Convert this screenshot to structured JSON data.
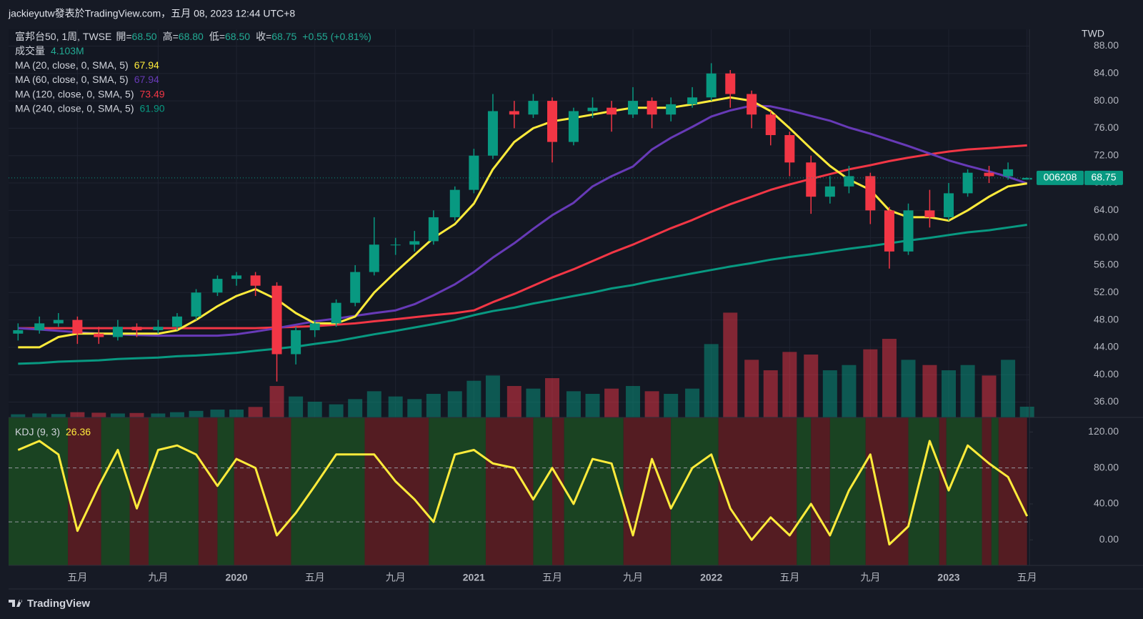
{
  "chart_data": {
    "type": "candlestick",
    "header": "jackieyutw發表於TradingView.com，五月 08, 2023 12:44 UTC+8",
    "symbol": "富邦台50, 1周, TWSE",
    "ohlc_legend": [
      {
        "label": "開=",
        "value": "68.50"
      },
      {
        "label": "高=",
        "value": "68.80"
      },
      {
        "label": "低=",
        "value": "68.50"
      },
      {
        "label": "收=",
        "value": "68.75"
      }
    ],
    "change": "+0.55 (+0.81%)",
    "currency": "TWD",
    "ticker": "006208",
    "footer": "TradingView",
    "x": [
      2019.08,
      2019.17,
      2019.25,
      2019.33,
      2019.42,
      2019.5,
      2019.58,
      2019.67,
      2019.75,
      2019.83,
      2019.92,
      2020,
      2020.08,
      2020.17,
      2020.25,
      2020.33,
      2020.42,
      2020.5,
      2020.58,
      2020.67,
      2020.75,
      2020.83,
      2020.92,
      2021,
      2021.08,
      2021.17,
      2021.25,
      2021.33,
      2021.42,
      2021.5,
      2021.58,
      2021.67,
      2021.75,
      2021.83,
      2021.92,
      2022,
      2022.08,
      2022.17,
      2022.25,
      2022.33,
      2022.42,
      2022.5,
      2022.58,
      2022.67,
      2022.75,
      2022.83,
      2022.92,
      2023,
      2023.08,
      2023.17,
      2023.25,
      2023.33
    ],
    "xlim": [
      2019.04,
      2023.34
    ],
    "xticks": [
      {
        "value": 2019.33,
        "label": "五月"
      },
      {
        "value": 2019.67,
        "label": "九月"
      },
      2020,
      {
        "value": 2020.33,
        "label": "五月"
      },
      {
        "value": 2020.67,
        "label": "九月"
      },
      2021,
      {
        "value": 2021.33,
        "label": "五月"
      },
      {
        "value": 2021.67,
        "label": "九月"
      },
      2022,
      {
        "value": 2022.33,
        "label": "五月"
      },
      {
        "value": 2022.67,
        "label": "九月"
      },
      2023,
      {
        "value": 2023.33,
        "label": "五月"
      }
    ],
    "ohlc": [
      [
        46,
        47.5,
        45,
        46.5
      ],
      [
        46.5,
        48.5,
        46,
        47.5
      ],
      [
        47.5,
        49,
        47,
        48
      ],
      [
        48,
        48.5,
        44.5,
        46
      ],
      [
        46,
        47,
        44.5,
        45.5
      ],
      [
        45.5,
        48,
        45,
        47
      ],
      [
        47,
        47.5,
        45.5,
        46.5
      ],
      [
        46.5,
        48,
        46,
        47
      ],
      [
        47,
        49,
        46.5,
        48.5
      ],
      [
        48.5,
        52.5,
        48,
        52
      ],
      [
        52,
        54.5,
        51.5,
        54
      ],
      [
        54,
        55,
        53,
        54.5
      ],
      [
        54.5,
        55,
        51.5,
        53
      ],
      [
        53,
        53.5,
        39,
        43
      ],
      [
        43,
        47,
        41.5,
        46.5
      ],
      [
        46.5,
        48,
        45.5,
        47.5
      ],
      [
        47.5,
        51,
        47,
        50.5
      ],
      [
        50.5,
        56,
        50,
        55
      ],
      [
        55,
        63,
        54.5,
        59
      ],
      [
        59,
        60,
        57.5,
        59
      ],
      [
        59,
        61,
        58,
        59.5
      ],
      [
        59.5,
        64,
        59,
        63
      ],
      [
        63,
        67.5,
        62.5,
        67
      ],
      [
        67,
        73,
        66.5,
        72
      ],
      [
        72,
        81,
        71.5,
        78.5
      ],
      [
        78.5,
        80,
        76,
        78
      ],
      [
        78,
        81,
        77.5,
        80
      ],
      [
        80,
        80.5,
        71,
        74
      ],
      [
        74,
        79,
        73.5,
        78.5
      ],
      [
        78.5,
        80.5,
        77.5,
        79
      ],
      [
        79,
        80,
        75.5,
        78
      ],
      [
        78,
        82,
        77.5,
        80
      ],
      [
        80,
        80.5,
        76,
        78
      ],
      [
        78,
        80.5,
        77,
        79.5
      ],
      [
        79.5,
        82,
        79,
        80.5
      ],
      [
        80.5,
        85.5,
        80,
        84
      ],
      [
        84,
        84.5,
        79,
        81
      ],
      [
        81,
        81.5,
        76,
        78
      ],
      [
        78,
        78.5,
        73.5,
        75
      ],
      [
        75,
        75.5,
        69,
        71
      ],
      [
        71,
        72,
        63.5,
        66
      ],
      [
        66,
        69,
        65,
        67.5
      ],
      [
        67.5,
        70.5,
        66.5,
        69
      ],
      [
        69,
        69.5,
        62,
        64
      ],
      [
        64,
        64.5,
        55.5,
        58
      ],
      [
        58,
        65,
        57.5,
        64
      ],
      [
        64,
        67,
        61.5,
        63
      ],
      [
        63,
        68,
        62.5,
        66.5
      ],
      [
        66.5,
        70,
        66,
        69.5
      ],
      [
        69.5,
        70.5,
        68,
        69
      ],
      [
        69,
        71,
        68.5,
        70
      ],
      [
        68.5,
        68.8,
        68.5,
        68.75
      ]
    ],
    "up_color": "#089981",
    "down_color": "#f23645",
    "ylim": [
      33.76,
      90.45
    ],
    "yticks": [
      {
        "value": 36,
        "label": "36.00"
      },
      {
        "value": 40,
        "label": "40.00"
      },
      {
        "value": 44,
        "label": "44.00"
      },
      {
        "value": 48,
        "label": "48.00"
      },
      {
        "value": 52,
        "label": "52.00"
      },
      {
        "value": 56,
        "label": "56.00"
      },
      {
        "value": 60,
        "label": "60.00"
      },
      {
        "value": 64,
        "label": "64.00"
      },
      {
        "value": 68,
        "label": "68.00"
      },
      {
        "value": 72,
        "label": "72.00"
      },
      {
        "value": 76,
        "label": "76.00"
      },
      {
        "value": 80,
        "label": "80.00"
      },
      {
        "value": 84,
        "label": "84.00"
      },
      {
        "value": 88,
        "label": "88.00"
      }
    ],
    "volume": {
      "name": "成交量",
      "last_label": "4.103M",
      "values": [
        1.2,
        1.5,
        1.3,
        2,
        1.8,
        1.5,
        1.7,
        1.5,
        2,
        2.5,
        3,
        3,
        4,
        12,
        8,
        6,
        5,
        7,
        10,
        8,
        7,
        9,
        10,
        14,
        16,
        12,
        11,
        15,
        10,
        9,
        11,
        12,
        10,
        9,
        11,
        28,
        40,
        22,
        18,
        25,
        24,
        18,
        20,
        26,
        30,
        22,
        20,
        18,
        20,
        16,
        22,
        4.103
      ]
    },
    "series": [
      {
        "name": "MA (20, close, 0, SMA, 5)",
        "color": "#ffeb3b",
        "last_label": "67.94",
        "values": [
          44,
          44,
          45.5,
          46,
          46,
          46,
          46,
          46,
          46.5,
          48,
          50,
          51.5,
          52.5,
          51,
          49,
          47.5,
          47.5,
          48.5,
          52,
          55,
          57.5,
          60,
          62,
          65,
          70,
          74,
          76,
          77,
          77.5,
          78,
          78.5,
          79,
          79,
          79,
          79.5,
          80,
          80.5,
          80,
          78.5,
          76,
          73,
          70.5,
          68.5,
          67,
          64,
          63,
          63,
          62.5,
          64,
          66,
          67.5,
          67.94
        ]
      },
      {
        "name": "MA (60, close, 0, SMA, 5)",
        "color": "#673ab7",
        "last_label": "67.94",
        "values": [
          46.8,
          46.6,
          46.4,
          46.2,
          46,
          45.9,
          45.8,
          45.7,
          45.7,
          45.7,
          45.7,
          45.9,
          46.3,
          46.8,
          47.3,
          47.8,
          48.2,
          48.6,
          49,
          49.4,
          50.3,
          51.6,
          53.2,
          55,
          57.1,
          59.2,
          61.3,
          63.3,
          65.1,
          67.5,
          69,
          70.4,
          72.9,
          74.6,
          76.2,
          77.7,
          78.6,
          79.3,
          79.2,
          78.6,
          77.8,
          77.1,
          76.1,
          75.2,
          74.3,
          73.4,
          72.3,
          71.3,
          70.5,
          69.7,
          68.9,
          67.94
        ]
      },
      {
        "name": "MA (120, close, 0, SMA, 5)",
        "color": "#f23645",
        "last_label": "73.49",
        "values": [
          46.8,
          46.8,
          46.8,
          46.8,
          46.8,
          46.8,
          46.8,
          46.8,
          46.8,
          46.8,
          46.8,
          46.8,
          46.8,
          46.9,
          47,
          47.1,
          47.3,
          47.5,
          47.8,
          48.1,
          48.4,
          48.7,
          49,
          49.4,
          50.6,
          51.8,
          53,
          54.2,
          55.4,
          56.6,
          57.8,
          59,
          60.2,
          61.4,
          62.6,
          63.8,
          64.9,
          66,
          67,
          67.8,
          68.6,
          69.3,
          70,
          70.6,
          71.2,
          71.7,
          72.2,
          72.6,
          72.9,
          73.1,
          73.3,
          73.49
        ]
      },
      {
        "name": "MA (240, close, 0, SMA, 5)",
        "color": "#089981",
        "last_label": "61.90",
        "values": [
          41.6,
          41.7,
          41.9,
          42,
          42.1,
          42.3,
          42.4,
          42.5,
          42.7,
          42.8,
          43,
          43.2,
          43.5,
          43.8,
          44.1,
          44.5,
          44.9,
          45.4,
          45.9,
          46.4,
          46.9,
          47.4,
          48,
          48.7,
          49.3,
          49.8,
          50.4,
          50.9,
          51.5,
          52,
          52.6,
          53.1,
          53.7,
          54.2,
          54.8,
          55.3,
          55.8,
          56.3,
          56.8,
          57.2,
          57.6,
          58,
          58.4,
          58.8,
          59.2,
          59.6,
          60,
          60.4,
          60.8,
          61.1,
          61.5,
          61.9
        ]
      }
    ],
    "kdj": {
      "name": "KDJ (9, 3)",
      "color": "#ffeb3b",
      "values": [
        100,
        110,
        95,
        10,
        60,
        100,
        35,
        100,
        105,
        95,
        60,
        90,
        80,
        5,
        30,
        60,
        95,
        95,
        95,
        65,
        45,
        20,
        95,
        100,
        85,
        80,
        45,
        80,
        40,
        90,
        85,
        5,
        90,
        35,
        80,
        95,
        35,
        0,
        25,
        5,
        40,
        5,
        55,
        95,
        -5,
        15,
        110,
        55,
        105,
        85,
        70,
        26.36
      ],
      "ylim": [
        -28.4,
        136.2
      ],
      "yticks": [
        {
          "value": 0,
          "label": "0.00"
        },
        {
          "value": 40,
          "label": "40.00"
        },
        {
          "value": 80,
          "label": "80.00"
        },
        {
          "value": 120,
          "label": "120.00"
        }
      ],
      "levels": [
        80,
        20
      ],
      "zones": {
        "edges": [
          2019.04,
          2019.29,
          2019.43,
          2019.55,
          2019.63,
          2019.84,
          2019.92,
          2019.99,
          2020.23,
          2020.54,
          2020.81,
          2021.05,
          2021.25,
          2021.33,
          2021.38,
          2021.63,
          2021.83,
          2022.03,
          2022.36,
          2022.42,
          2022.5,
          2022.65,
          2022.83,
          2022.96,
          2022.99,
          2023.14,
          2023.18,
          2023.21,
          2023.33
        ],
        "colors": [
          "#1a4322",
          "#541c22",
          "#1a4322",
          "#541c22",
          "#1a4322",
          "#541c22",
          "#1a4322",
          "#541c22",
          "#1a4322",
          "#541c22",
          "#1a4322",
          "#541c22",
          "#1a4322",
          "#541c22",
          "#1a4322",
          "#541c22",
          "#1a4322",
          "#541c22",
          "#1a4322",
          "#541c22",
          "#1a4322",
          "#541c22",
          "#1a4322",
          "#541c22",
          "#1a4322",
          "#541c22",
          "#1a4322",
          "#541c22"
        ]
      }
    }
  }
}
